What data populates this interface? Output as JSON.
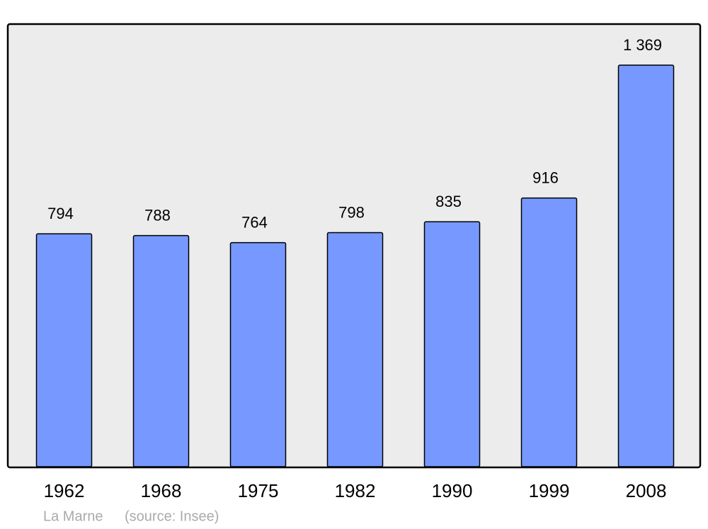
{
  "chart_data": {
    "type": "bar",
    "categories": [
      "1962",
      "1968",
      "1975",
      "1982",
      "1990",
      "1999",
      "2008"
    ],
    "values": [
      794,
      788,
      764,
      798,
      835,
      916,
      1369
    ],
    "value_labels": [
      "794",
      "788",
      "764",
      "798",
      "835",
      "916",
      "1 369"
    ],
    "color": "#7799ff",
    "footer": {
      "place": "La Marne",
      "source": "(source: Insee)"
    }
  }
}
